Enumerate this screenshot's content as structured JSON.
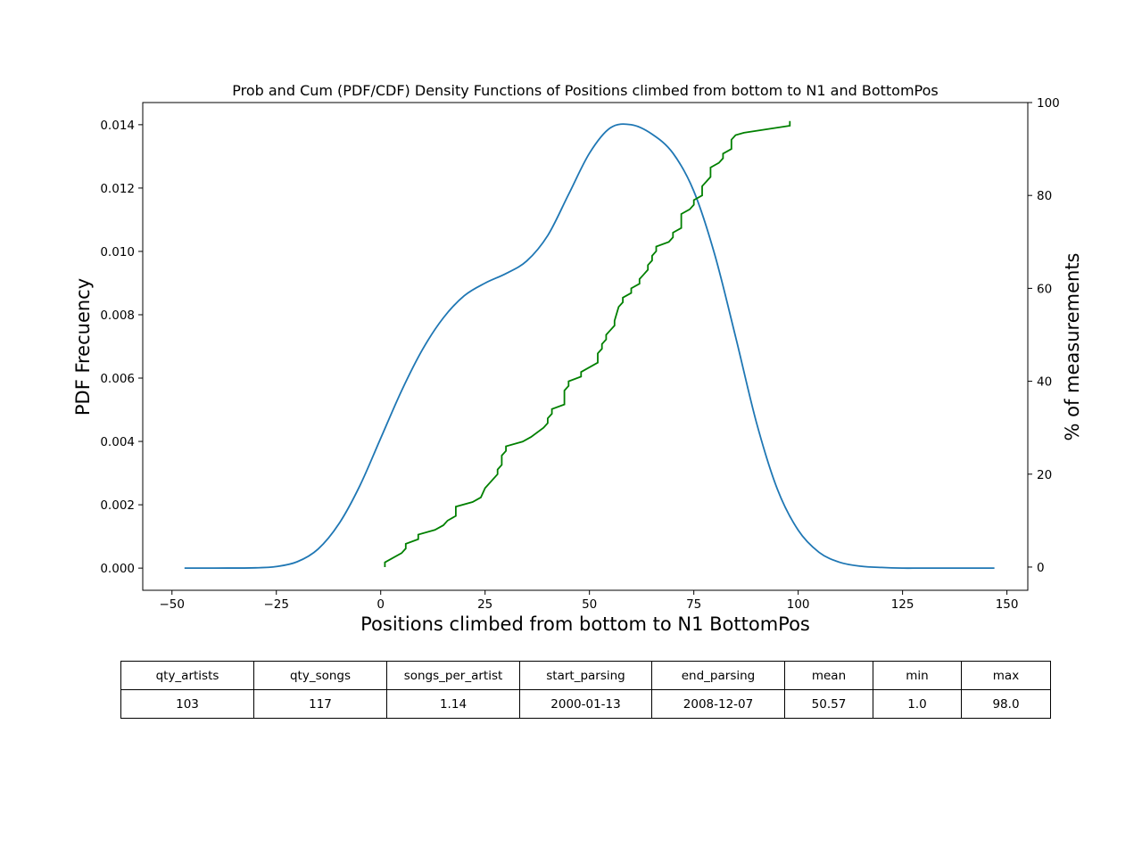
{
  "chart_data": {
    "type": "line",
    "title": "Prob and Cum (PDF/CDF) Density Functions of Positions climbed from bottom to N1 and BottomPos",
    "xlabel": "Positions climbed from bottom to N1 BottomPos",
    "ylabel": "PDF Frecuency",
    "y2label": "% of measurements",
    "ylabel_color": "#0000ff",
    "y2label_color": "#ff0000",
    "xlim": [
      -57,
      155
    ],
    "ylim": [
      -0.0007,
      0.0147
    ],
    "y2lim": [
      -5,
      100
    ],
    "xticks": [
      -50,
      -25,
      0,
      25,
      50,
      75,
      100,
      125,
      150
    ],
    "xtick_labels": [
      "−50",
      "−25",
      "0",
      "25",
      "50",
      "75",
      "100",
      "125",
      "150"
    ],
    "yticks": [
      0.0,
      0.002,
      0.004,
      0.006,
      0.008,
      0.01,
      0.012,
      0.014
    ],
    "ytick_labels": [
      "0.000",
      "0.002",
      "0.004",
      "0.006",
      "0.008",
      "0.010",
      "0.012",
      "0.014"
    ],
    "y2ticks": [
      0,
      20,
      40,
      60,
      80,
      100
    ],
    "y2tick_labels": [
      "0",
      "20",
      "40",
      "60",
      "80",
      "100"
    ],
    "grid": false,
    "series": [
      {
        "axis": "left",
        "color": "#1f77b4",
        "x": [
          -47,
          -40,
          -30,
          -25,
          -20,
          -15,
          -10,
          -5,
          0,
          5,
          10,
          15,
          20,
          25,
          30,
          35,
          40,
          45,
          50,
          55,
          60,
          65,
          70,
          75,
          80,
          85,
          90,
          95,
          100,
          105,
          110,
          115,
          120,
          125,
          130,
          140,
          147
        ],
        "y": [
          0.0,
          0.0,
          1e-05,
          5e-05,
          0.0002,
          0.0006,
          0.0014,
          0.0026,
          0.0041,
          0.0056,
          0.0069,
          0.0079,
          0.0086,
          0.009,
          0.0093,
          0.0097,
          0.0105,
          0.0118,
          0.0131,
          0.0139,
          0.014,
          0.0137,
          0.0131,
          0.0119,
          0.0099,
          0.0073,
          0.0046,
          0.0025,
          0.0012,
          0.0005,
          0.00018,
          6e-05,
          2e-05,
          0.0,
          0.0,
          0.0,
          0.0
        ]
      },
      {
        "axis": "right",
        "color": "#008000",
        "x": [
          1,
          1,
          5,
          6,
          6,
          9,
          9,
          13,
          15,
          16,
          18,
          18,
          22,
          24,
          25,
          28,
          28,
          29,
          29,
          30,
          30,
          34,
          36,
          39,
          40,
          40,
          41,
          41,
          44,
          44,
          45,
          45,
          48,
          48,
          52,
          52,
          53,
          53,
          54,
          54,
          55,
          56,
          56,
          57,
          58,
          58,
          60,
          60,
          62,
          62,
          63,
          64,
          64,
          65,
          65,
          66,
          66,
          69,
          70,
          70,
          72,
          72,
          74,
          75,
          75,
          77,
          77,
          78,
          79,
          79,
          81,
          82,
          82,
          84,
          84,
          85,
          87,
          98,
          98
        ],
        "y": [
          0,
          1,
          3,
          4,
          5,
          6,
          7,
          8,
          9,
          10,
          11,
          13,
          14,
          15,
          17,
          20,
          21,
          22,
          24,
          25,
          26,
          27,
          28,
          30,
          31,
          32,
          33,
          34,
          35,
          38,
          39,
          40,
          41,
          42,
          44,
          46,
          47,
          48,
          49,
          50,
          51,
          52,
          53,
          56,
          57,
          58,
          59,
          60,
          61,
          62,
          63,
          64,
          65,
          66,
          67,
          68,
          69,
          70,
          71,
          72,
          73,
          76,
          77,
          78,
          79,
          80,
          82,
          83,
          84,
          86,
          87,
          88,
          89,
          90,
          92,
          93,
          93.5,
          95,
          96
        ]
      }
    ]
  },
  "table": {
    "headers": [
      "qty_artists",
      "qty_songs",
      "songs_per_artist",
      "start_parsing",
      "end_parsing",
      "mean",
      "min",
      "max"
    ],
    "row": [
      "103",
      "117",
      "1.14",
      "2000-01-13",
      "2008-12-07",
      "50.57",
      "1.0",
      "98.0"
    ]
  }
}
